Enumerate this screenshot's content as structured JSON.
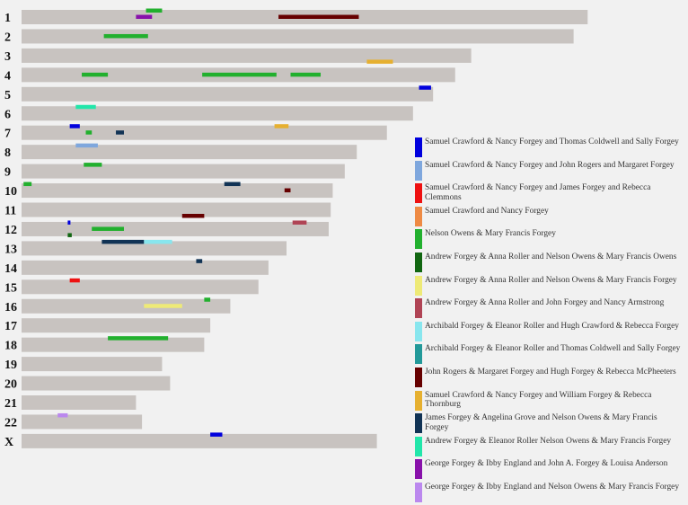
{
  "chart_data": {
    "type": "chromosome-map",
    "title": "",
    "position_unit": "cM",
    "chromosomes": [
      {
        "name": "1",
        "length": 282
      },
      {
        "name": "2",
        "length": 275
      },
      {
        "name": "3",
        "length": 224
      },
      {
        "name": "4",
        "length": 216
      },
      {
        "name": "5",
        "length": 205
      },
      {
        "name": "6",
        "length": 195
      },
      {
        "name": "7",
        "length": 182
      },
      {
        "name": "8",
        "length": 167
      },
      {
        "name": "9",
        "length": 161
      },
      {
        "name": "10",
        "length": 155
      },
      {
        "name": "11",
        "length": 154
      },
      {
        "name": "12",
        "length": 153
      },
      {
        "name": "13",
        "length": 132
      },
      {
        "name": "14",
        "length": 123
      },
      {
        "name": "15",
        "length": 118
      },
      {
        "name": "16",
        "length": 104
      },
      {
        "name": "17",
        "length": 94
      },
      {
        "name": "18",
        "length": 91
      },
      {
        "name": "19",
        "length": 70
      },
      {
        "name": "20",
        "length": 74
      },
      {
        "name": "21",
        "length": 57
      },
      {
        "name": "22",
        "length": 60
      },
      {
        "name": "X",
        "length": 177
      }
    ],
    "series": [
      {
        "name": "Samuel Crawford & Nancy Forgey and Thomas Coldwell and Sally Forgey",
        "color": "#0000dd"
      },
      {
        "name": "Samuel Crawford & Nancy Forgey and John Rogers and Margaret Forgey",
        "color": "#7fa7dd"
      },
      {
        "name": "Samuel Crawford & Nancy Forgey and James Forgey and Rebecca Clemmons",
        "color": "#ee1111"
      },
      {
        "name": "Samuel Crawford and Nancy Forgey",
        "color": "#ee8a44"
      },
      {
        "name": "Nelson Owens & Mary Francis Forgey",
        "color": "#22b02e"
      },
      {
        "name": "Andrew Forgey & Anna Roller and Nelson Owens & Mary Francis Owens",
        "color": "#116611"
      },
      {
        "name": "Andrew Forgey & Anna Roller and Nelson Owens & Mary Francis Forgey",
        "color": "#eeea77"
      },
      {
        "name": "Andrew Forgey & Anna Roller and John Forgey and Nancy Armstrong",
        "color": "#b04455"
      },
      {
        "name": "Archibald Forgey & Eleanor Roller and Hugh Crawford & Rebecca Forgey",
        "color": "#88e6ee"
      },
      {
        "name": "Archibald Forgey & Eleanor Roller and Thomas Coldwell and Sally Forgey",
        "color": "#229999"
      },
      {
        "name": "John Rogers & Margaret Forgey and Hugh Forgey & Rebecca McPheeters",
        "color": "#660000"
      },
      {
        "name": "Samuel Crawford & Nancy Forgey and William Forgey & Rebecca Thornburg",
        "color": "#e6b030"
      },
      {
        "name": "James Forgey & Angelina Grove and Nelson Owens & Mary Francis Forgey",
        "color": "#113355"
      },
      {
        "name": "Andrew Forgey & Eleanor Roller Nelson Owens & Mary Francis Forgey",
        "color": "#22e6aa"
      },
      {
        "name": "George Forgey & Ibby England and John A. Forgey & Louisa Anderson",
        "color": "#8811aa"
      },
      {
        "name": "George Forgey & Ibby England and Nelson Owens & Mary Francis Forgey",
        "color": "#bb88ee"
      }
    ],
    "segments": [
      {
        "chr": "1",
        "start": 62,
        "end": 70,
        "series": 4,
        "lane": 0
      },
      {
        "chr": "1",
        "start": 57,
        "end": 65,
        "series": 14,
        "lane": 1
      },
      {
        "chr": "1",
        "start": 128,
        "end": 168,
        "series": 10,
        "lane": 1
      },
      {
        "chr": "2",
        "start": 41,
        "end": 63,
        "series": 4,
        "lane": 1
      },
      {
        "chr": "3",
        "start": 172,
        "end": 185,
        "series": 11,
        "lane": 2
      },
      {
        "chr": "4",
        "start": 30,
        "end": 43,
        "series": 4,
        "lane": 1
      },
      {
        "chr": "4",
        "start": 90,
        "end": 127,
        "series": 4,
        "lane": 1
      },
      {
        "chr": "4",
        "start": 134,
        "end": 149,
        "series": 4,
        "lane": 1
      },
      {
        "chr": "5",
        "start": 198,
        "end": 204,
        "series": 0,
        "lane": 0
      },
      {
        "chr": "6",
        "start": 27,
        "end": 37,
        "series": 13,
        "lane": 0
      },
      {
        "chr": "7",
        "start": 24,
        "end": 29,
        "series": 0,
        "lane": 0
      },
      {
        "chr": "7",
        "start": 32,
        "end": 35,
        "series": 4,
        "lane": 1
      },
      {
        "chr": "7",
        "start": 47,
        "end": 51,
        "series": 12,
        "lane": 1
      },
      {
        "chr": "7",
        "start": 126,
        "end": 133,
        "series": 11,
        "lane": 0
      },
      {
        "chr": "8",
        "start": 27,
        "end": 38,
        "series": 1,
        "lane": 0
      },
      {
        "chr": "9",
        "start": 31,
        "end": 40,
        "series": 4,
        "lane": 0
      },
      {
        "chr": "10",
        "start": 1,
        "end": 5,
        "series": 4,
        "lane": 0
      },
      {
        "chr": "10",
        "start": 101,
        "end": 109,
        "series": 12,
        "lane": 0
      },
      {
        "chr": "10",
        "start": 131,
        "end": 134,
        "series": 10,
        "lane": 1
      },
      {
        "chr": "11",
        "start": 80,
        "end": 91,
        "series": 10,
        "lane": 2
      },
      {
        "chr": "12",
        "start": 23,
        "end": 24,
        "series": 0,
        "lane": 0
      },
      {
        "chr": "12",
        "start": 23,
        "end": 25,
        "series": 5,
        "lane": 2
      },
      {
        "chr": "12",
        "start": 35,
        "end": 51,
        "series": 4,
        "lane": 1
      },
      {
        "chr": "12",
        "start": 135,
        "end": 142,
        "series": 7,
        "lane": 0
      },
      {
        "chr": "13",
        "start": 40,
        "end": 61,
        "series": 12,
        "lane": 0
      },
      {
        "chr": "13",
        "start": 61,
        "end": 75,
        "series": 8,
        "lane": 0
      },
      {
        "chr": "14",
        "start": 87,
        "end": 90,
        "series": 12,
        "lane": 0
      },
      {
        "chr": "15",
        "start": 24,
        "end": 29,
        "series": 2,
        "lane": 0
      },
      {
        "chr": "16",
        "start": 91,
        "end": 94,
        "series": 4,
        "lane": 0
      },
      {
        "chr": "16",
        "start": 61,
        "end": 80,
        "series": 6,
        "lane": 1
      },
      {
        "chr": "18",
        "start": 43,
        "end": 73,
        "series": 4,
        "lane": 0
      },
      {
        "chr": "22",
        "start": 18,
        "end": 23,
        "series": 15,
        "lane": 0
      },
      {
        "chr": "X",
        "start": 94,
        "end": 100,
        "series": 0,
        "lane": 0
      }
    ]
  }
}
